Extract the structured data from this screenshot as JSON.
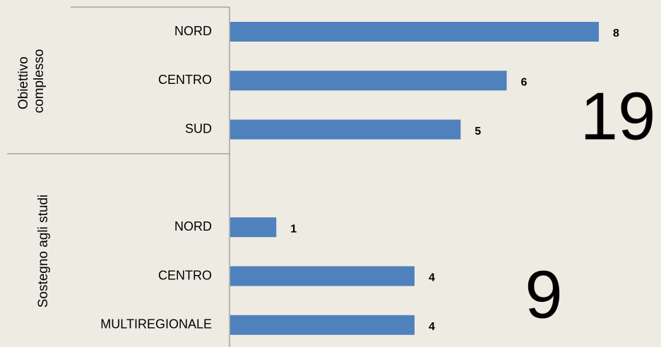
{
  "chart_data": {
    "type": "bar",
    "orientation": "horizontal",
    "color": "#4f81bd",
    "groups": [
      {
        "name": "Obiettivo complesso",
        "categories": [
          "NORD",
          "CENTRO",
          "SUD"
        ],
        "values": [
          8,
          6,
          5
        ],
        "total": 19
      },
      {
        "name": "Sostegno agli studi",
        "categories": [
          "NORD",
          "CENTRO",
          "MULTIREGIONALE"
        ],
        "values": [
          1,
          4,
          4
        ],
        "total": 9
      }
    ]
  }
}
